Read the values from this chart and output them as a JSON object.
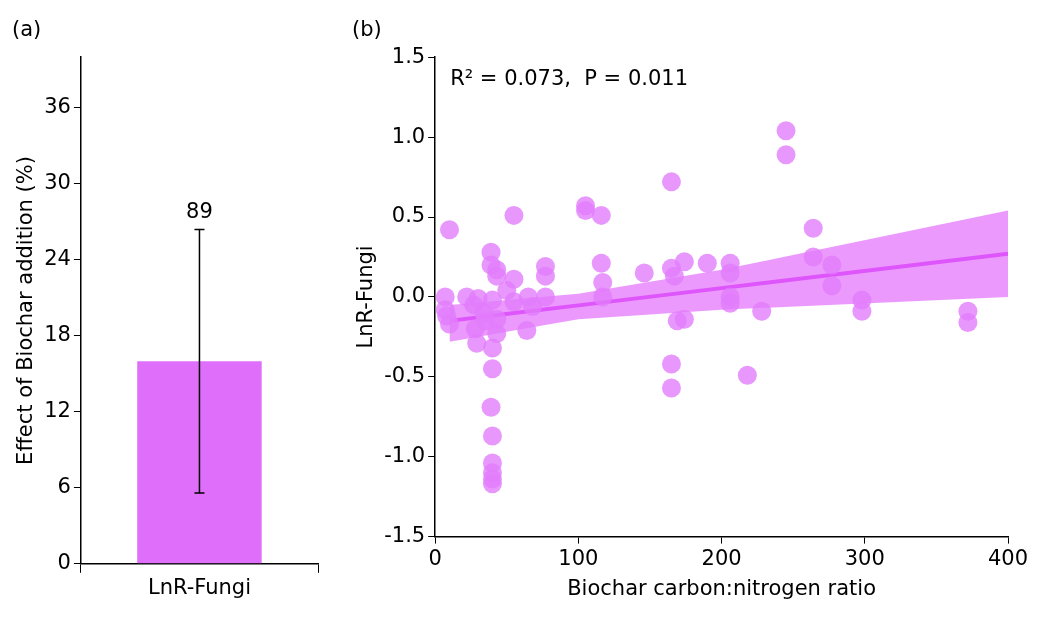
{
  "chart_data": [
    {
      "type": "bar",
      "title": "(a)",
      "ylabel": "Effect of Biochar addition (%)",
      "categories": [
        "LnR-Fungi"
      ],
      "values": [
        16
      ],
      "errors": [
        [
          5.6,
          26.4
        ]
      ],
      "color": "#df6ffb",
      "ylim": [
        0,
        40
      ],
      "yticks": [
        0,
        6,
        12,
        18,
        24,
        30,
        36
      ],
      "grid": false,
      "legend": false,
      "annotations": [
        {
          "text": "89",
          "x": "LnR-Fungi",
          "y": 26.4
        }
      ]
    },
    {
      "type": "scatter",
      "title": "(b)",
      "xlabel": "Biochar carbon:nitrogen ratio",
      "ylabel": "LnR-Fungi",
      "xlim": [
        0,
        400
      ],
      "xticks": [
        0,
        100,
        200,
        300,
        400
      ],
      "ylim": [
        -1.5,
        1.5
      ],
      "yticks": [
        {
          "value": -1.5,
          "label": "-1.5"
        },
        {
          "value": -1,
          "label": "-1.0"
        },
        {
          "value": -0.5,
          "label": "-0.5"
        },
        {
          "value": 0,
          "label": "0.0"
        },
        {
          "value": 0.5,
          "label": "0.5"
        },
        {
          "value": 1,
          "label": "1.0"
        },
        {
          "value": 1.5,
          "label": "1.5"
        }
      ],
      "grid": false,
      "legend": false,
      "annotations": [
        "R² = 0.073,  P = 0.011"
      ],
      "series": [
        {
          "type": "scatter",
          "marker": "circle",
          "color": "#e27cfb",
          "x": [
            10,
            7,
            7,
            8,
            10,
            22,
            27,
            30,
            34,
            28,
            29,
            35,
            39,
            39,
            43,
            43,
            40,
            43,
            43,
            40,
            40,
            39,
            40,
            40,
            40,
            40,
            40,
            55,
            55,
            50,
            55,
            65,
            68,
            64,
            77,
            77,
            77,
            105,
            105,
            116,
            116,
            117,
            117,
            146,
            165,
            165,
            167,
            174,
            169,
            174,
            165,
            165,
            190,
            206,
            206,
            206,
            206,
            218,
            228,
            245,
            245,
            264,
            264,
            277,
            277,
            298,
            298,
            372,
            372
          ],
          "values": [
            0.42,
            0,
            -0.08,
            -0.12,
            -0.17,
            0,
            -0.05,
            -0.01,
            -0.1,
            -0.2,
            -0.29,
            -0.15,
            0.28,
            0.2,
            0.17,
            0.13,
            -0.02,
            -0.14,
            -0.23,
            -0.32,
            -0.45,
            -0.69,
            -0.87,
            -1.04,
            -1.1,
            -1.14,
            -1.17,
            0.51,
            0.11,
            0.04,
            -0.03,
            0,
            -0.06,
            -0.21,
            0.19,
            0.13,
            0,
            0.54,
            0.57,
            0.51,
            0.21,
            0.09,
            0,
            0.15,
            0.72,
            0.18,
            0.13,
            0.22,
            -0.15,
            -0.14,
            -0.42,
            -0.57,
            0.21,
            0.21,
            0.15,
            0,
            -0.04,
            -0.49,
            -0.09,
            1.04,
            0.89,
            0.43,
            0.25,
            0.2,
            0.07,
            -0.02,
            -0.09,
            -0.09,
            -0.16
          ]
        },
        {
          "type": "line",
          "marker": "none",
          "color": "#dd55fb",
          "x": [
            10,
            100,
            200,
            400
          ],
          "values": [
            -0.15,
            -0.053,
            0.055,
            0.27
          ],
          "lower": [
            -0.28,
            -0.14,
            -0.08,
            0.0
          ],
          "upper": [
            -0.05,
            0.02,
            0.17,
            0.54
          ]
        }
      ]
    }
  ]
}
